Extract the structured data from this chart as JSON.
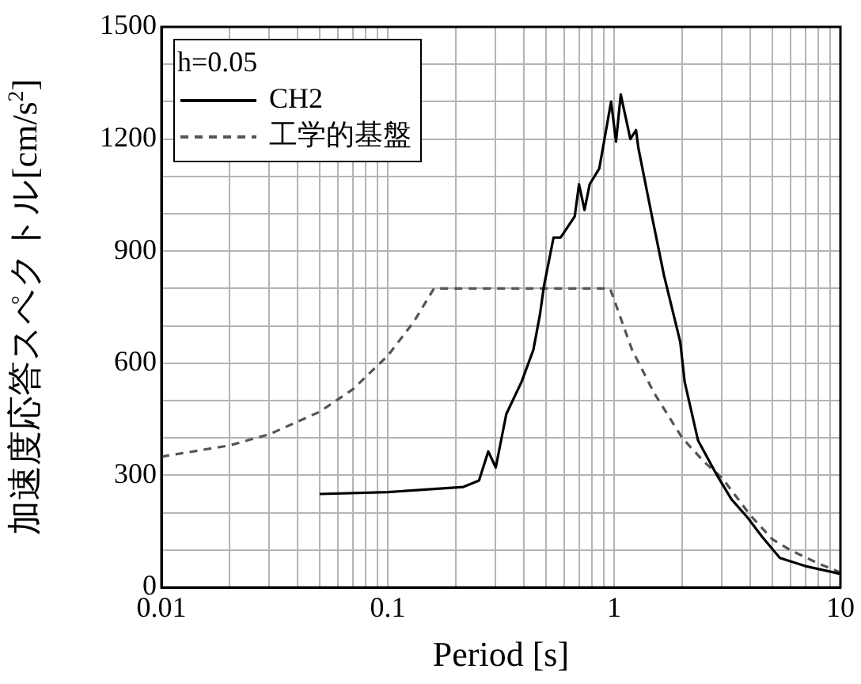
{
  "chart_data": {
    "type": "line",
    "xlabel": "Period [s]",
    "ylabel": "加速度応答スペクトル[cm/s$^{2}$]",
    "legend_title": "h=0.05",
    "legend": "top left",
    "grid": true,
    "log": "x",
    "marker": "none",
    "xlim": [
      0.01,
      10
    ],
    "ylim": [
      0,
      1500
    ],
    "xticks": [
      0.01,
      {
        "value": 0.02,
        "label": null
      },
      {
        "value": 0.03,
        "label": null
      },
      {
        "value": 0.04,
        "label": null
      },
      {
        "value": 0.05,
        "label": null
      },
      {
        "value": 0.06,
        "label": null
      },
      {
        "value": 0.07,
        "label": null
      },
      {
        "value": 0.08,
        "label": null
      },
      {
        "value": 0.09,
        "label": null
      },
      0.1,
      {
        "value": 0.2,
        "label": null
      },
      {
        "value": 0.3,
        "label": null
      },
      {
        "value": 0.4,
        "label": null
      },
      {
        "value": 0.5,
        "label": null
      },
      {
        "value": 0.6,
        "label": null
      },
      {
        "value": 0.7,
        "label": null
      },
      {
        "value": 0.8,
        "label": null
      },
      {
        "value": 0.9,
        "label": null
      },
      1,
      {
        "value": 2,
        "label": null
      },
      {
        "value": 3,
        "label": null
      },
      {
        "value": 4,
        "label": null
      },
      {
        "value": 5,
        "label": null
      },
      {
        "value": 6,
        "label": null
      },
      {
        "value": 7,
        "label": null
      },
      {
        "value": 8,
        "label": null
      },
      {
        "value": 9,
        "label": null
      },
      10
    ],
    "yticks": [
      0,
      {
        "value": 100,
        "label": null
      },
      {
        "value": 200,
        "label": null
      },
      300,
      {
        "value": 400,
        "label": null
      },
      {
        "value": 500,
        "label": null
      },
      600,
      {
        "value": 700,
        "label": null
      },
      {
        "value": 800,
        "label": null
      },
      900,
      {
        "value": 1000,
        "label": null
      },
      {
        "value": 1100,
        "label": null
      },
      1200,
      {
        "value": 1300,
        "label": null
      },
      {
        "value": 1400,
        "label": null
      },
      1500
    ],
    "series": [
      {
        "name": "CH2",
        "color": "#000000",
        "line_style": "solid",
        "x": [
          0.05,
          0.1,
          0.216,
          0.253,
          0.278,
          0.3,
          0.334,
          0.39,
          0.44,
          0.47,
          0.49,
          0.54,
          0.58,
          0.67,
          0.7,
          0.74,
          0.78,
          0.86,
          0.97,
          1.02,
          1.07,
          1.18,
          1.25,
          1.28,
          1.47,
          1.66,
          1.96,
          2.05,
          2.35,
          2.85,
          3.3,
          3.9,
          4.5,
          5.4,
          7,
          10
        ],
        "values": [
          250,
          255,
          269,
          286,
          364,
          321,
          464,
          550,
          636,
          729,
          807,
          936,
          936,
          993,
          1079,
          1010,
          1079,
          1121,
          1300,
          1193,
          1319,
          1200,
          1224,
          1176,
          993,
          836,
          657,
          550,
          393,
          300,
          236,
          186,
          136,
          79,
          57,
          36
        ]
      },
      {
        "name": "工学的基盤",
        "color": "#555555",
        "line_style": "dashed",
        "x": [
          0.01,
          0.02,
          0.03,
          0.05,
          0.07,
          0.1,
          0.13,
          0.16,
          0.96,
          1.2,
          1.5,
          2,
          2.5,
          3,
          4,
          5,
          6,
          8,
          10
        ],
        "values": [
          350,
          380,
          410,
          470,
          530,
          620,
          710,
          800,
          800,
          636,
          521,
          400,
          336,
          293,
          193,
          129,
          100,
          64,
          40
        ]
      }
    ]
  }
}
